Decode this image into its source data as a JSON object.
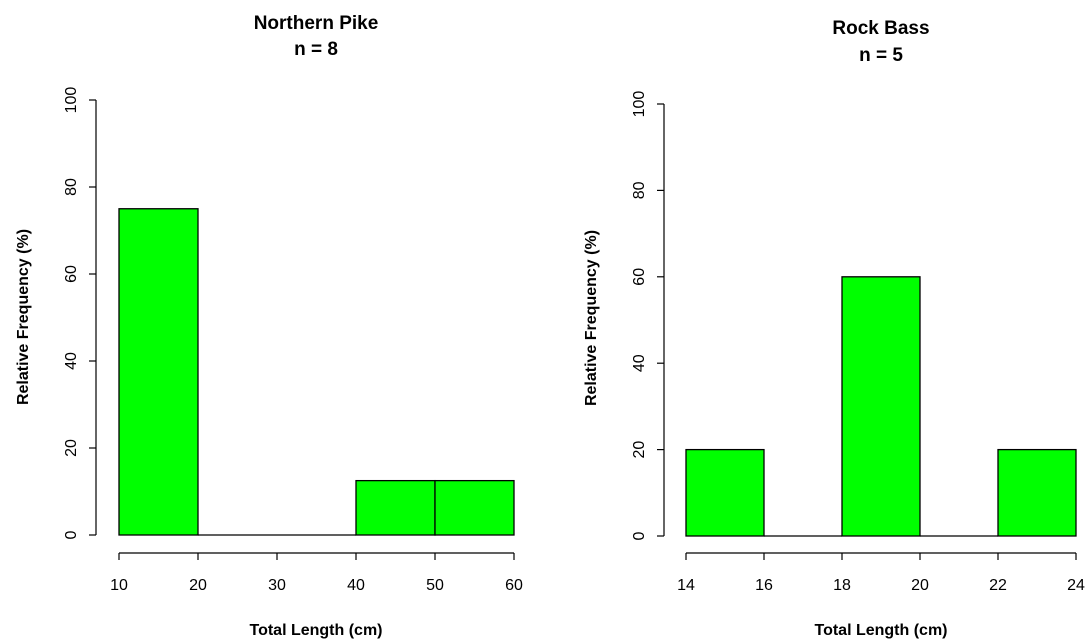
{
  "chart_data": [
    {
      "type": "bar",
      "title": "Northern Pike",
      "subtitle": "n = 8",
      "xlabel": "Total Length (cm)",
      "ylabel": "Relative Frequency (%)",
      "xlim": [
        10,
        60
      ],
      "ylim": [
        0,
        100
      ],
      "x_ticks": [
        "10",
        "20",
        "30",
        "40",
        "50",
        "60"
      ],
      "y_ticks": [
        "0",
        "20",
        "40",
        "60",
        "80",
        "100"
      ],
      "bins": [
        {
          "start": 10,
          "end": 20,
          "value": 75
        },
        {
          "start": 20,
          "end": 30,
          "value": 0
        },
        {
          "start": 30,
          "end": 40,
          "value": 0
        },
        {
          "start": 40,
          "end": 50,
          "value": 12.5
        },
        {
          "start": 50,
          "end": 60,
          "value": 12.5
        }
      ],
      "bar_color": "#00ff00",
      "grid": false
    },
    {
      "type": "bar",
      "title": "Rock Bass",
      "subtitle": "n = 5",
      "xlabel": "Total Length (cm)",
      "ylabel": "Relative Frequency (%)",
      "xlim": [
        14,
        24
      ],
      "ylim": [
        0,
        100
      ],
      "x_ticks": [
        "14",
        "16",
        "18",
        "20",
        "22",
        "24"
      ],
      "y_ticks": [
        "0",
        "20",
        "40",
        "60",
        "80",
        "100"
      ],
      "bins": [
        {
          "start": 14,
          "end": 16,
          "value": 20
        },
        {
          "start": 16,
          "end": 18,
          "value": 0
        },
        {
          "start": 18,
          "end": 20,
          "value": 60
        },
        {
          "start": 20,
          "end": 22,
          "value": 0
        },
        {
          "start": 22,
          "end": 24,
          "value": 20
        }
      ],
      "bar_color": "#00ff00",
      "grid": false
    }
  ]
}
